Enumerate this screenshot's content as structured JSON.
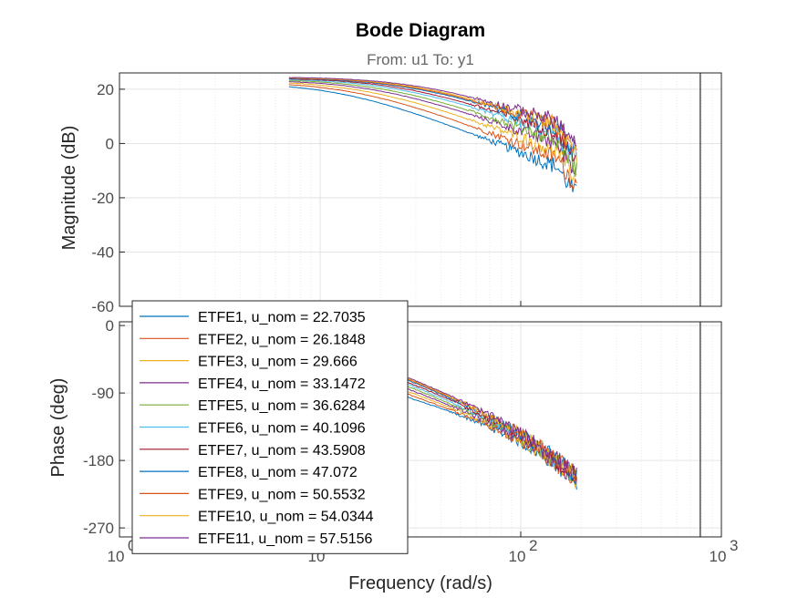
{
  "chart_data": {
    "type": "line",
    "title": "Bode Diagram",
    "subtitle": "From: u1  To: y1",
    "xlabel": "Frequency  (rad/s)",
    "xscale": "log",
    "xlim": [
      1,
      1000
    ],
    "x_ticks": [
      {
        "base": "10",
        "exp": "0"
      },
      {
        "base": "10",
        "exp": "1"
      },
      {
        "base": "10",
        "exp": "2"
      },
      {
        "base": "10",
        "exp": "3"
      }
    ],
    "nyquist_frequency": 785,
    "grid": true,
    "legend_location": "bottom-left",
    "magnitude": {
      "ylabel": "Magnitude (dB)",
      "ylim": [
        -60,
        26
      ],
      "yticks": [
        20,
        0,
        -20,
        -40,
        -60
      ],
      "ytick_labels": [
        "20",
        "0",
        "-20",
        "-40",
        "-60"
      ]
    },
    "phase": {
      "ylabel": "Phase (deg)",
      "ylim": [
        -282,
        5
      ],
      "yticks": [
        0,
        -90,
        -180,
        -270
      ],
      "ytick_labels": [
        "0",
        "-90",
        "-180",
        "-270"
      ]
    },
    "series": [
      {
        "name": "ETFE1, u_nom = 22.7035",
        "color": "#0072BD",
        "dc_gain": 22.5,
        "corner": 13,
        "hf_slope": 1.45,
        "phase_lag": 9.5,
        "w_max": 190
      },
      {
        "name": "ETFE2, u_nom = 26.1848",
        "color": "#D95319",
        "dc_gain": 22.9,
        "corner": 15,
        "hf_slope": 1.4,
        "phase_lag": 9.2,
        "w_max": 190
      },
      {
        "name": "ETFE3, u_nom = 29.666",
        "color": "#EDB120",
        "dc_gain": 23.2,
        "corner": 17,
        "hf_slope": 1.35,
        "phase_lag": 9.0,
        "w_max": 190
      },
      {
        "name": "ETFE4, u_nom = 33.1472",
        "color": "#7E2F8E",
        "dc_gain": 23.5,
        "corner": 19,
        "hf_slope": 1.3,
        "phase_lag": 8.8,
        "w_max": 190
      },
      {
        "name": "ETFE5, u_nom = 36.6284",
        "color": "#77AC30",
        "dc_gain": 23.8,
        "corner": 21,
        "hf_slope": 1.3,
        "phase_lag": 8.6,
        "w_max": 190
      },
      {
        "name": "ETFE6, u_nom = 40.1096",
        "color": "#4DBEEE",
        "dc_gain": 24.0,
        "corner": 23,
        "hf_slope": 1.25,
        "phase_lag": 8.4,
        "w_max": 190
      },
      {
        "name": "ETFE7, u_nom = 43.5908",
        "color": "#A2142F",
        "dc_gain": 24.2,
        "corner": 25,
        "hf_slope": 1.25,
        "phase_lag": 8.2,
        "w_max": 190
      },
      {
        "name": "ETFE8, u_nom = 47.072",
        "color": "#0072BD",
        "dc_gain": 24.3,
        "corner": 27,
        "hf_slope": 1.2,
        "phase_lag": 8.0,
        "w_max": 190
      },
      {
        "name": "ETFE9, u_nom = 50.5532",
        "color": "#D95319",
        "dc_gain": 24.4,
        "corner": 28,
        "hf_slope": 1.2,
        "phase_lag": 7.9,
        "w_max": 190
      },
      {
        "name": "ETFE10, u_nom = 54.0344",
        "color": "#EDB120",
        "dc_gain": 24.5,
        "corner": 29,
        "hf_slope": 1.2,
        "phase_lag": 7.8,
        "w_max": 190
      },
      {
        "name": "ETFE11, u_nom = 57.5156",
        "color": "#7E2F8E",
        "dc_gain": 24.6,
        "corner": 30,
        "hf_slope": 1.15,
        "phase_lag": 7.7,
        "w_max": 190
      }
    ],
    "series_w_min": 7
  }
}
